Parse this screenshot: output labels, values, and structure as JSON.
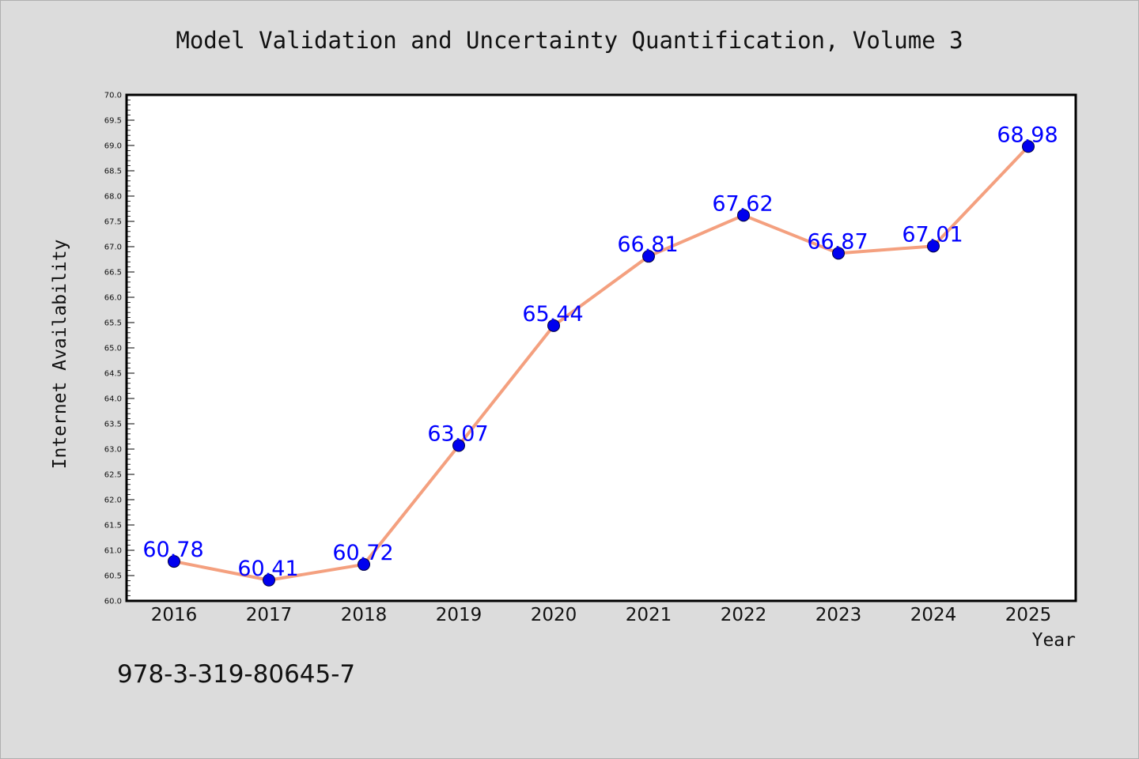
{
  "chart_data": {
    "type": "line",
    "title": "Model Validation and Uncertainty Quantification, Volume 3",
    "xlabel": "Year",
    "ylabel": "Internet Availability",
    "categories": [
      "2016",
      "2017",
      "2018",
      "2019",
      "2020",
      "2021",
      "2022",
      "2023",
      "2024",
      "2025"
    ],
    "series": [
      {
        "values": [
          60.78,
          60.41,
          60.72,
          63.07,
          65.44,
          66.81,
          67.62,
          66.87,
          67.01,
          68.98
        ]
      }
    ],
    "data_labels": [
      "60.78",
      "60.41",
      "60.72",
      "63.07",
      "65.44",
      "66.81",
      "67.62",
      "66.87",
      "67.01",
      "68.98"
    ],
    "ylim": [
      60.0,
      70.0
    ],
    "yticks": [
      "60.0",
      "60.5",
      "61.0",
      "61.5",
      "62.0",
      "62.5",
      "63.0",
      "63.5",
      "64.0",
      "64.5",
      "65.0",
      "65.5",
      "66.0",
      "66.5",
      "67.0",
      "67.5",
      "68.0",
      "68.5",
      "69.0",
      "69.5",
      "70.0"
    ],
    "grid": false,
    "legend": "none",
    "colors": {
      "line": "#f4a07f",
      "marker": "#0000ee",
      "data_label": "#0000ff",
      "background": "#dcdcdc",
      "plot_background": "#ffffff"
    }
  },
  "footer": {
    "isbn": "978-3-319-80645-7"
  }
}
